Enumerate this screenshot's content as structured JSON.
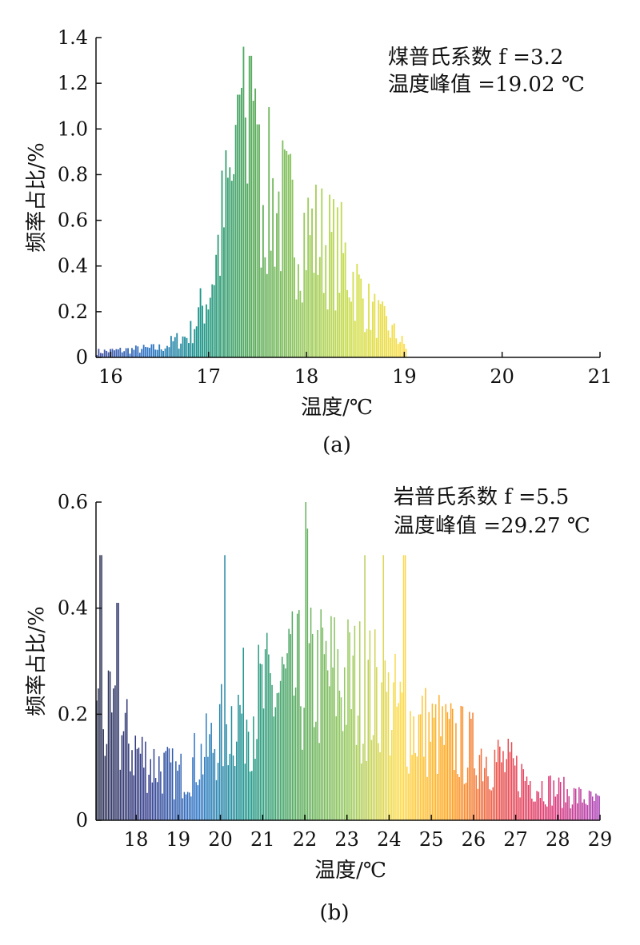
{
  "chart_data": [
    {
      "type": "bar",
      "panel_label": "(a)",
      "xlabel": "温度/℃",
      "ylabel": "频率占比/%",
      "xlim": [
        15.85,
        21
      ],
      "ylim": [
        0,
        1.4
      ],
      "xticks": [
        "16",
        "17",
        "18",
        "19",
        "20",
        "21"
      ],
      "yticks": [
        "0",
        "0.2",
        "0.4",
        "0.6",
        "0.8",
        "1.0",
        "1.2",
        "1.4"
      ],
      "annotation": [
        "煤普氏系数 f =3.2",
        "温度峰值 =19.02 ℃"
      ],
      "color_scale": [
        "#2c3e99",
        "#1565c0",
        "#00897b",
        "#43a047",
        "#8bc34a",
        "#cddc39",
        "#fdd835"
      ],
      "bin_width": 0.02,
      "profile": [
        {
          "x": 15.85,
          "y": 0.03
        },
        {
          "x": 16.5,
          "y": 0.05
        },
        {
          "x": 16.8,
          "y": 0.12
        },
        {
          "x": 17.0,
          "y": 0.35
        },
        {
          "x": 17.2,
          "y": 0.85
        },
        {
          "x": 17.35,
          "y": 1.2
        },
        {
          "x": 17.42,
          "y": 1.05
        },
        {
          "x": 17.6,
          "y": 0.85
        },
        {
          "x": 17.9,
          "y": 0.7
        },
        {
          "x": 18.2,
          "y": 0.6
        },
        {
          "x": 18.4,
          "y": 0.5
        },
        {
          "x": 18.6,
          "y": 0.28
        },
        {
          "x": 18.9,
          "y": 0.12
        },
        {
          "x": 19.02,
          "y": 0.05
        }
      ],
      "peaks": [
        {
          "x": 17.35,
          "y": 1.36
        },
        {
          "x": 17.42,
          "y": 1.32
        },
        {
          "x": 17.3,
          "y": 1.15
        },
        {
          "x": 17.5,
          "y": 1.02
        },
        {
          "x": 18.35,
          "y": 0.68
        }
      ]
    },
    {
      "type": "bar",
      "panel_label": "(b)",
      "xlabel": "温度/℃",
      "ylabel": "频率占比/%",
      "xlim": [
        17.05,
        29.0
      ],
      "ylim": [
        0,
        0.6
      ],
      "xticks": [
        "18",
        "19",
        "20",
        "21",
        "22",
        "23",
        "24",
        "25",
        "26",
        "27",
        "28",
        "29"
      ],
      "yticks": [
        "0",
        "0.2",
        "0.4",
        "0.6"
      ],
      "annotation": [
        "岩普氏系数 f =5.5",
        "温度峰值 =29.27 ℃"
      ],
      "color_scale": [
        "#0d1236",
        "#1a237e",
        "#1565c0",
        "#00897b",
        "#43a047",
        "#8bc34a",
        "#fdd835",
        "#ff9800",
        "#e53935",
        "#d81b60",
        "#9c27b0"
      ],
      "bin_width": 0.04,
      "profile": [
        {
          "x": 17.05,
          "y": 0.24
        },
        {
          "x": 17.6,
          "y": 0.2
        },
        {
          "x": 18.2,
          "y": 0.14
        },
        {
          "x": 19.0,
          "y": 0.1
        },
        {
          "x": 19.7,
          "y": 0.16
        },
        {
          "x": 20.3,
          "y": 0.24
        },
        {
          "x": 21.5,
          "y": 0.3
        },
        {
          "x": 22.5,
          "y": 0.33
        },
        {
          "x": 23.5,
          "y": 0.3
        },
        {
          "x": 24.5,
          "y": 0.22
        },
        {
          "x": 25.5,
          "y": 0.18
        },
        {
          "x": 26.5,
          "y": 0.14
        },
        {
          "x": 27.5,
          "y": 0.08
        },
        {
          "x": 29.0,
          "y": 0.04
        }
      ],
      "peaks": [
        {
          "x": 17.15,
          "y": 0.5
        },
        {
          "x": 17.55,
          "y": 0.41
        },
        {
          "x": 20.1,
          "y": 0.5
        },
        {
          "x": 22.0,
          "y": 0.6
        },
        {
          "x": 22.05,
          "y": 0.55
        },
        {
          "x": 23.4,
          "y": 0.5
        },
        {
          "x": 23.85,
          "y": 0.5
        },
        {
          "x": 24.35,
          "y": 0.5
        }
      ]
    }
  ]
}
